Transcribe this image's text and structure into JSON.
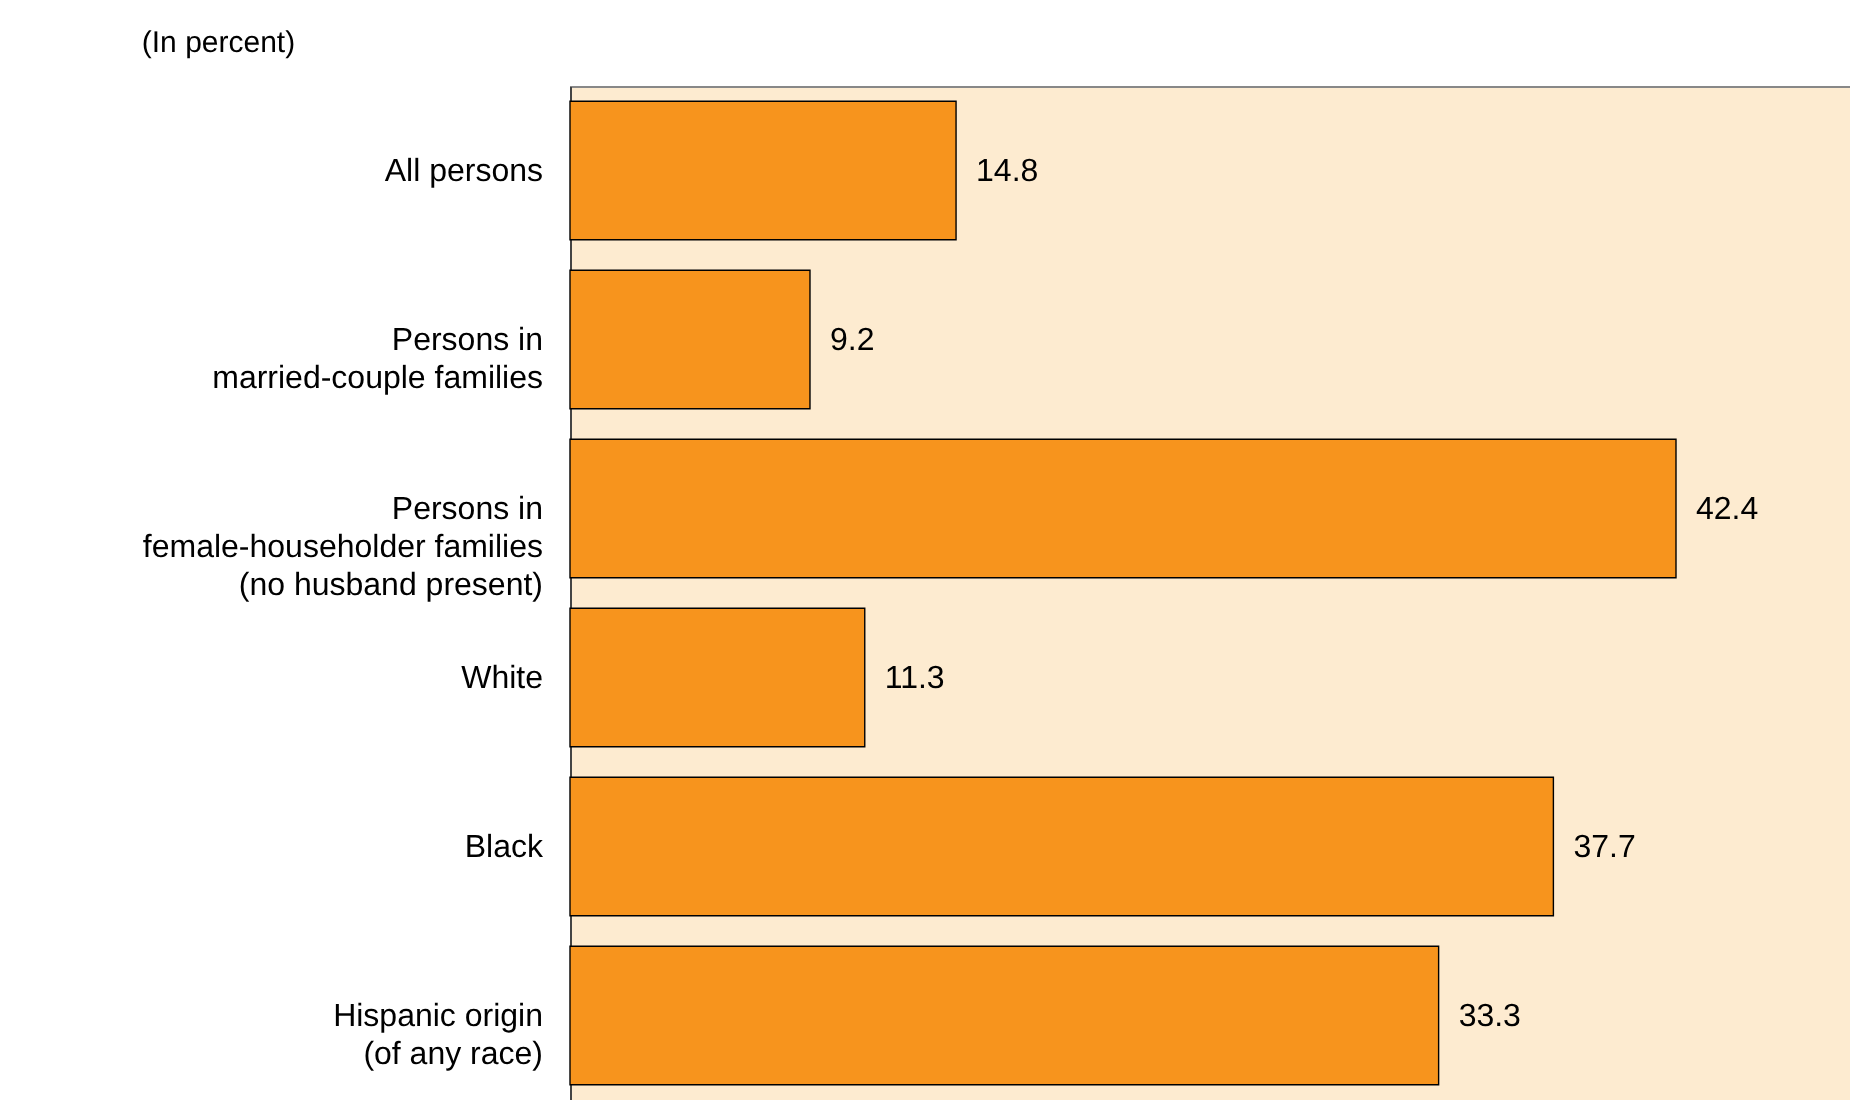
{
  "chart_data": {
    "type": "bar",
    "orientation": "horizontal",
    "title": "(In percent)",
    "categories": [
      "All persons",
      "Persons in\nmarried-couple families",
      "Persons in\nfemale-householder families\n(no husband present)",
      "White",
      "Black",
      "Hispanic origin\n(of any race)"
    ],
    "values": [
      14.8,
      9.2,
      42.4,
      11.3,
      37.7,
      33.3
    ],
    "color": "#f7941d",
    "data_labels": true
  }
}
